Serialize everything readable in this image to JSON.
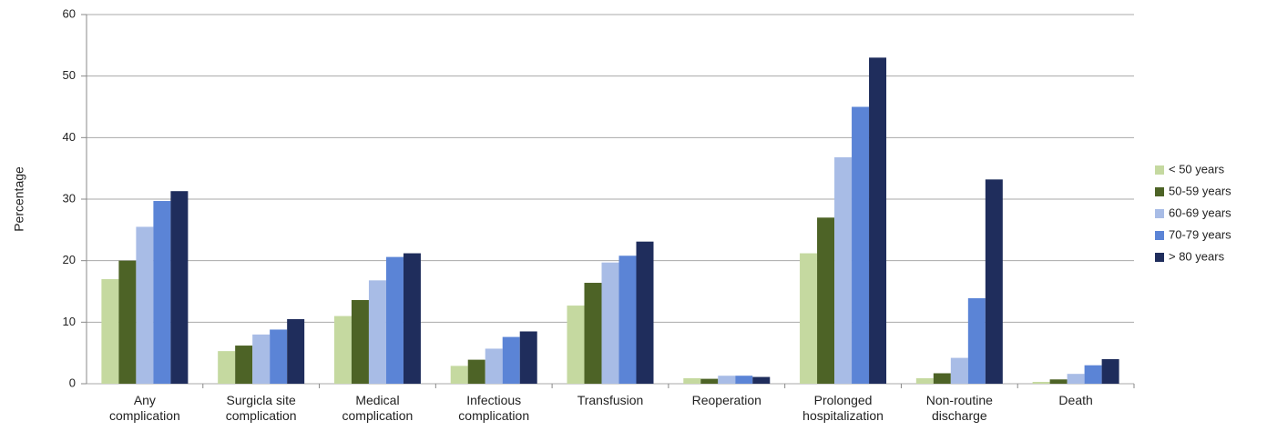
{
  "chart_data": {
    "type": "bar",
    "y_label": "Percentage",
    "categories": [
      "Any complication",
      "Surgicla site complication",
      "Medical complication",
      "Infectious complication",
      "Transfusion",
      "Reoperation",
      "Prolonged hospitalization",
      "Non-routine discharge",
      "Death"
    ],
    "series": [
      {
        "name": "< 50 years",
        "color": "#c5d9a0",
        "values": [
          17,
          5.3,
          11,
          2.9,
          12.7,
          0.9,
          21.2,
          0.9,
          0.3
        ]
      },
      {
        "name": "50-59 years",
        "color": "#4d6326",
        "values": [
          20,
          6.2,
          13.6,
          3.9,
          16.4,
          0.8,
          27,
          1.7,
          0.7
        ]
      },
      {
        "name": "60-69 years",
        "color": "#a8bce6",
        "values": [
          25.5,
          8,
          16.8,
          5.7,
          19.7,
          1.3,
          36.8,
          4.2,
          1.6
        ]
      },
      {
        "name": "70-79 years",
        "color": "#5b84d6",
        "values": [
          29.7,
          8.8,
          20.6,
          7.6,
          20.8,
          1.3,
          45,
          13.9,
          3
        ]
      },
      {
        "name": "> 80 years",
        "color": "#1f2d5c",
        "values": [
          31.3,
          10.5,
          21.2,
          8.5,
          23.1,
          1.1,
          53,
          33.2,
          4
        ]
      }
    ],
    "ylim": [
      0,
      60
    ],
    "yticks": [
      0,
      10,
      20,
      30,
      40,
      50,
      60
    ],
    "grid": true,
    "legend": "right"
  }
}
